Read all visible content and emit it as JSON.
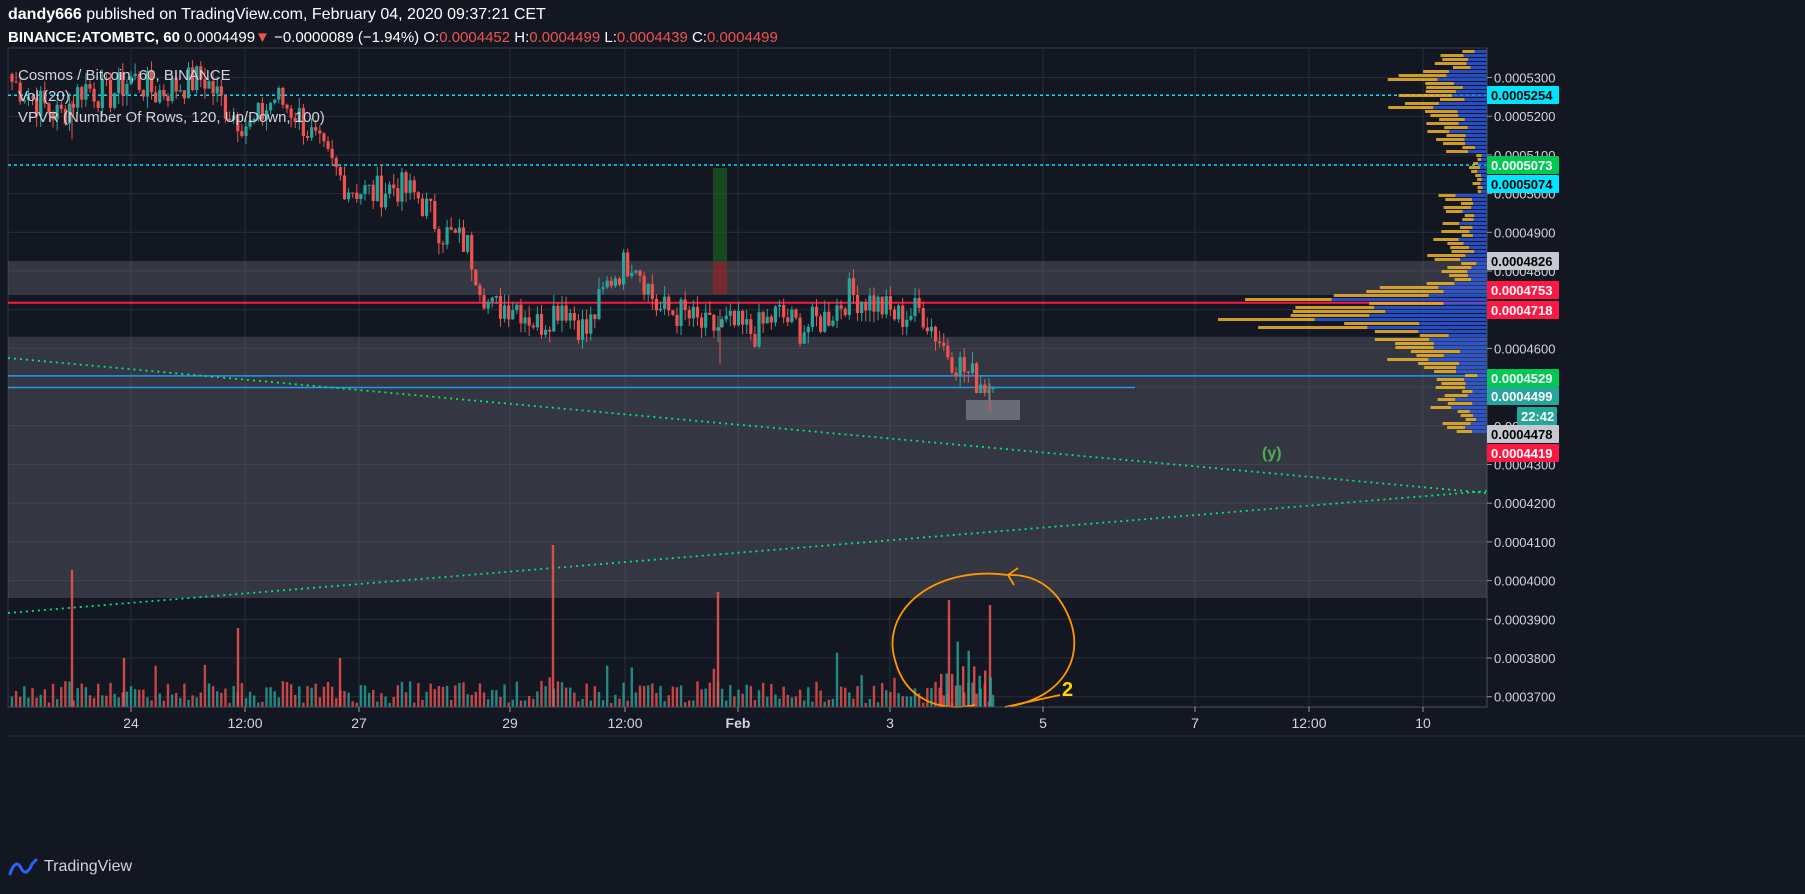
{
  "header": {
    "author": "dandy666",
    "published_text": "published on TradingView.com, February 04, 2020 09:37:21 CET",
    "symbol": "BINANCE:ATOMBTC, 60",
    "last": "0.0004499",
    "change": "−0.0000089 (−1.94%)",
    "open_label": "O:",
    "open": "0.0004452",
    "high_label": "H:",
    "high": "0.0004499",
    "low_label": "L:",
    "low": "0.0004439",
    "close_label": "C:",
    "close": "0.0004499"
  },
  "legend": {
    "title": "Cosmos / Bitcoin, 60, BINANCE",
    "vol": "Vol (20)",
    "vpvr": "VPVR (Number Of Rows, 120, Up/Down, 100)"
  },
  "footer": {
    "brand": "TradingView"
  },
  "colors": {
    "bg": "#131722",
    "up": "#26a69a",
    "down": "#ef5350",
    "grid": "#2a2e39",
    "zone": "#5d606b",
    "vpvr_up": "#2962ff",
    "vpvr_down": "#f0b429",
    "cyan": "#00e5ff",
    "green": "#00c853",
    "red": "#ff1744",
    "orange": "#ff9800"
  },
  "chart_data": {
    "type": "candlestick",
    "price_axis_ticks": [
      "0.0005300",
      "0.0005200",
      "0.0005100",
      "0.0005000",
      "0.0004900",
      "0.0004800",
      "0.0004700",
      "0.0004600",
      "0.0004500",
      "0.0004400",
      "0.0004300",
      "0.0004200",
      "0.0004100",
      "0.0004000",
      "0.0003900",
      "0.0003800",
      "0.0003700"
    ],
    "time_axis_ticks": [
      "24",
      "12:00",
      "27",
      "29",
      "12:00",
      "Feb",
      "3",
      "5",
      "7",
      "12:00",
      "10"
    ],
    "price_badges": [
      {
        "value": "0.0005254",
        "style": "cyan"
      },
      {
        "value": "0.0005073",
        "style": "green"
      },
      {
        "value": "0.0005074",
        "style": "cyan"
      },
      {
        "value": "0.0004826",
        "style": "gray"
      },
      {
        "value": "0.0004753",
        "style": "red"
      },
      {
        "value": "0.0004718",
        "style": "red"
      },
      {
        "value": "0.0004529",
        "style": "green"
      },
      {
        "value": "0.0004499",
        "style": "teal"
      },
      {
        "value": "22:42",
        "style": "teal"
      },
      {
        "value": "0.0004478",
        "style": "gray"
      },
      {
        "value": "0.0004419",
        "style": "red"
      }
    ],
    "horizontal_lines": [
      {
        "price": 0.0005254,
        "style": "cyan-dotted"
      },
      {
        "price": 0.0005074,
        "style": "cyan-dotted"
      },
      {
        "price": 0.0004718,
        "style": "red-solid"
      },
      {
        "price": 0.0004529,
        "style": "blue-solid"
      },
      {
        "price": 0.0004499,
        "style": "blue-solid"
      }
    ],
    "zones": [
      {
        "from": 0.0004826,
        "to": 0.0004738
      },
      {
        "from": 0.000463,
        "to": 0.0003955
      }
    ],
    "close_path": [
      [
        0,
        0.000529
      ],
      [
        1,
        0.000524
      ],
      [
        2,
        0.00052
      ],
      [
        3,
        0.000528
      ],
      [
        4,
        0.000525
      ],
      [
        5,
        0.00053
      ],
      [
        6,
        0.000526
      ],
      [
        7,
        0.000528
      ],
      [
        8,
        0.00053
      ],
      [
        9,
        0.000522
      ],
      [
        10,
        0.000517
      ],
      [
        11,
        0.000525
      ],
      [
        12,
        0.00052
      ],
      [
        13,
        0.00051
      ],
      [
        14,
        0.000502
      ],
      [
        15,
        0.0005
      ],
      [
        16,
        0.000502
      ],
      [
        17,
        0.000499
      ],
      [
        18,
        0.00049
      ],
      [
        19,
        0.000487
      ],
      [
        20,
        0.00047
      ],
      [
        21,
        0.000472
      ],
      [
        22,
        0.000466
      ],
      [
        23,
        0.000472
      ],
      [
        24,
        0.000464
      ],
      [
        25,
        0.000478
      ],
      [
        26,
        0.000484
      ],
      [
        27,
        0.00047
      ],
      [
        28,
        0.000469
      ],
      [
        29,
        0.000465
      ],
      [
        30,
        0.000466
      ],
      [
        31,
        0.000464
      ],
      [
        32,
        0.000469
      ],
      [
        33,
        0.000465
      ],
      [
        34,
        0.000468
      ],
      [
        35,
        0.000474
      ],
      [
        36,
        0.000472
      ],
      [
        37,
        0.000468
      ],
      [
        38,
        0.00047
      ],
      [
        39,
        0.00046
      ],
      [
        40,
        0.000453
      ],
      [
        41,
        0.0004499
      ]
    ],
    "annotations": [
      {
        "type": "label",
        "text": "(y)"
      },
      {
        "type": "label",
        "text": "2"
      }
    ]
  }
}
